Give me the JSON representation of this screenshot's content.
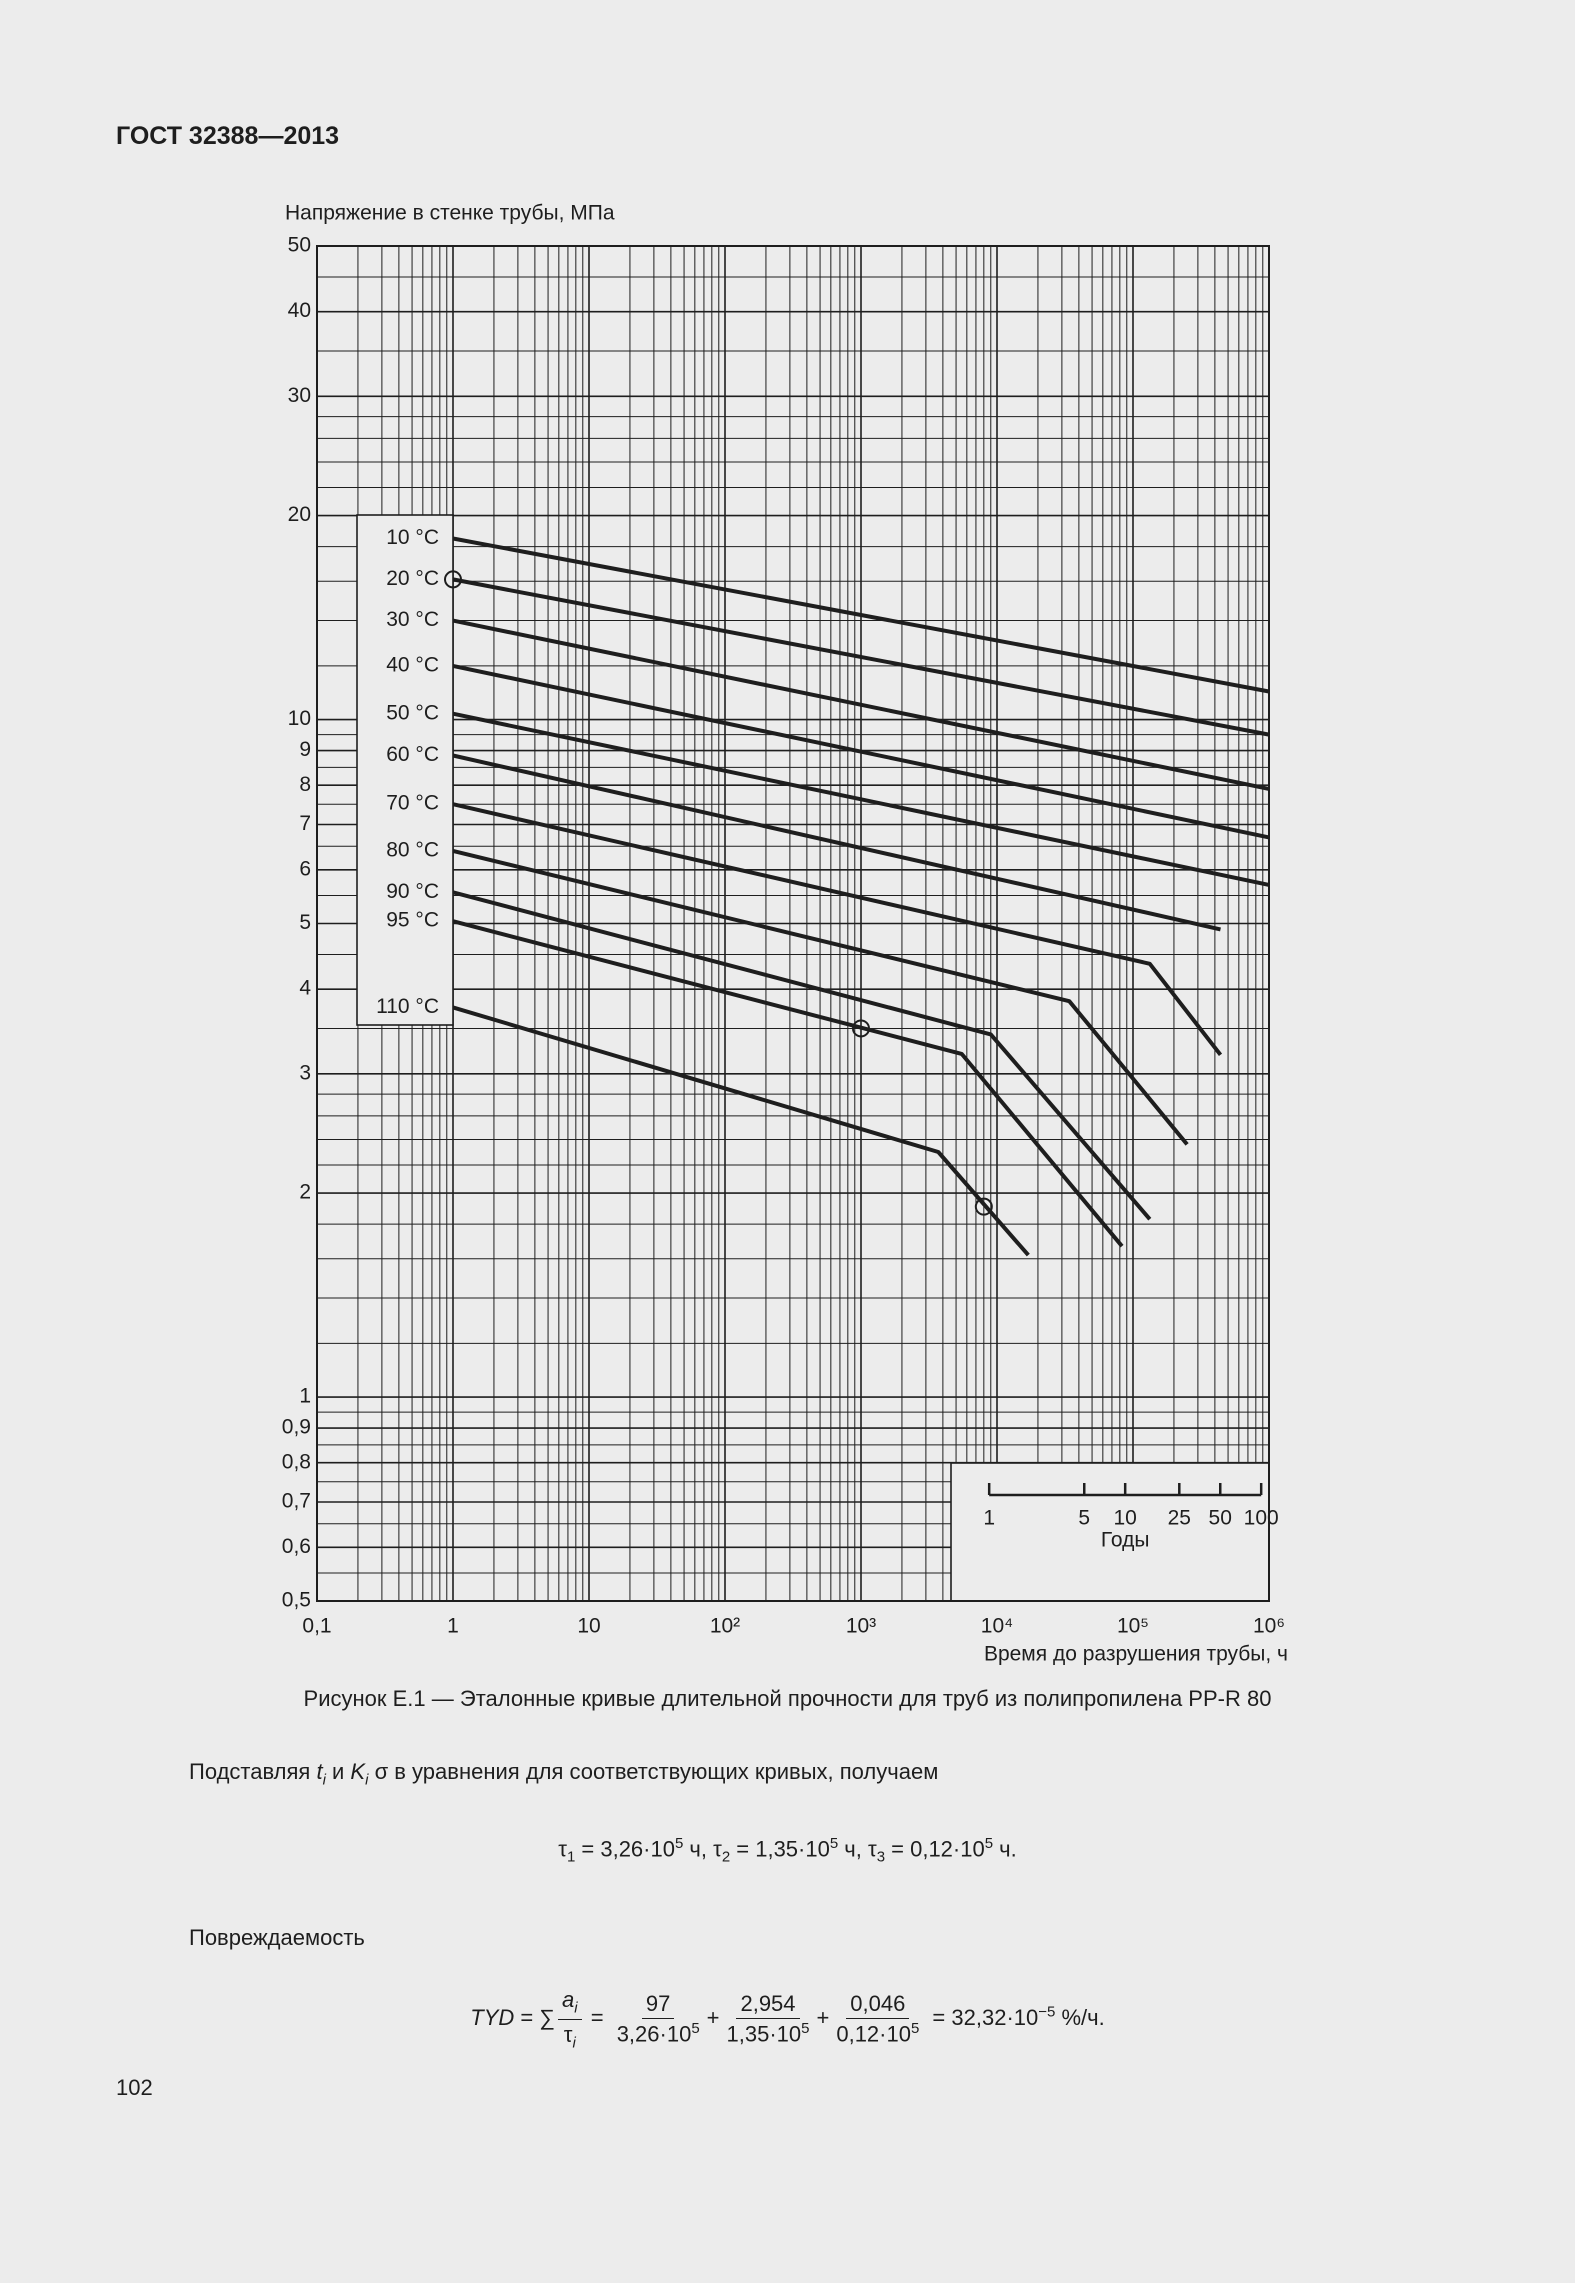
{
  "header": {
    "title": "ГОСТ 32388—2013"
  },
  "chart_data": {
    "type": "line",
    "y_label": "Напряжение в стенке трубы, МПа",
    "x_label": "Время до разрушения трубы, ч",
    "log_x": true,
    "log_y": true,
    "grid": true,
    "line_color": "#1e1e1e",
    "xlim": [
      0.1,
      1000000
    ],
    "ylim": [
      0.5,
      50
    ],
    "xticks": [
      {
        "value": 0.1,
        "label": "0,1"
      },
      1,
      10,
      {
        "value": 100,
        "label": "10²"
      },
      {
        "value": 1000,
        "label": "10³"
      },
      {
        "value": 10000,
        "label": "10⁴"
      },
      {
        "value": 100000,
        "label": "10⁵"
      },
      {
        "value": 1000000,
        "label": "10⁶"
      }
    ],
    "yticks": [
      {
        "value": 0.5,
        "label": "0,5"
      },
      {
        "value": 0.6,
        "label": "0,6"
      },
      {
        "value": 0.7,
        "label": "0,7"
      },
      {
        "value": 0.8,
        "label": "0,8"
      },
      {
        "value": 0.9,
        "label": "0,9"
      },
      1,
      2,
      3,
      4,
      5,
      6,
      7,
      8,
      9,
      10,
      20,
      30,
      40,
      50
    ],
    "series": [
      {
        "name": "10 °C",
        "x": [
          1,
          1000000
        ],
        "values": [
          18.5,
          11.0
        ]
      },
      {
        "name": "20 °C",
        "x": [
          1,
          1000000
        ],
        "values": [
          16.1,
          9.5
        ]
      },
      {
        "name": "30 °C",
        "x": [
          1,
          1000000
        ],
        "values": [
          14.0,
          7.9
        ]
      },
      {
        "name": "40 °C",
        "x": [
          1,
          1000000
        ],
        "values": [
          12.0,
          6.7
        ]
      },
      {
        "name": "50 °C",
        "x": [
          1,
          1000000
        ],
        "values": [
          10.2,
          5.7
        ]
      },
      {
        "name": "60 °C",
        "x": [
          1,
          440000
        ],
        "values": [
          8.85,
          4.9
        ]
      },
      {
        "name": "70 °C",
        "x": [
          1,
          133000,
          440000
        ],
        "values": [
          7.5,
          4.36,
          3.2
        ]
      },
      {
        "name": "80 °C",
        "x": [
          1,
          34000,
          250000
        ],
        "values": [
          6.4,
          3.84,
          2.36
        ]
      },
      {
        "name": "90 °C",
        "x": [
          1,
          9000,
          133000
        ],
        "values": [
          5.56,
          3.43,
          1.83
        ]
      },
      {
        "name": "95 °C",
        "x": [
          1,
          5500,
          83000
        ],
        "values": [
          5.04,
          3.21,
          1.67
        ]
      },
      {
        "name": "110 °C",
        "x": [
          1,
          3700,
          17000
        ],
        "values": [
          3.76,
          2.3,
          1.62
        ]
      }
    ],
    "markers": {
      "x": [
        1,
        1000,
        8000
      ],
      "values": [
        16.1,
        3.5,
        1.91
      ]
    },
    "years_axis": {
      "label": "Годы",
      "ticks": [
        1,
        5,
        10,
        25,
        50,
        100
      ]
    }
  },
  "caption": "Рисунок  Е.1 — Эталонные кривые длительной прочности для труб из полипропилена PP-R 80",
  "intro": [
    "Подставляя ",
    "t",
    "i",
    " и ",
    "K",
    "i",
    " σ в уравнения для соответствующих кривых, получаем"
  ],
  "equation": [
    "τ",
    "1",
    " = 3,26·10",
    "5",
    " ч, τ",
    "2",
    " = 1,35·10",
    "5",
    " ч, τ",
    "3",
    " = 0,12·10",
    "5",
    " ч."
  ],
  "damage": "Повреждаемость",
  "formula": [
    "TYD",
    " = ∑",
    "a",
    "i",
    "τ",
    "i",
    " = ",
    "97",
    "3,26·10",
    "5",
    "+",
    "2,954",
    "1,35·10",
    "5",
    "+",
    "0,046",
    "0,12·10",
    "5",
    " = 32,32·10",
    "−5",
    " %/ч."
  ],
  "page_number": "102"
}
